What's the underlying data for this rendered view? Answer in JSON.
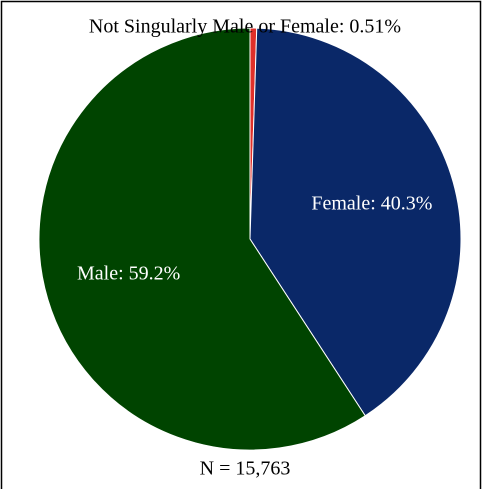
{
  "chart_data": {
    "type": "pie",
    "values": [
      0.51,
      40.3,
      59.2
    ],
    "value_labels": [
      "Not Singularly Male or Female: 0.51%",
      "Female: 40.3%",
      "Male: 59.2%"
    ],
    "colors": [
      "#e0302a",
      "#0a2868",
      "#004400"
    ],
    "annotation": "N = 15,763"
  }
}
